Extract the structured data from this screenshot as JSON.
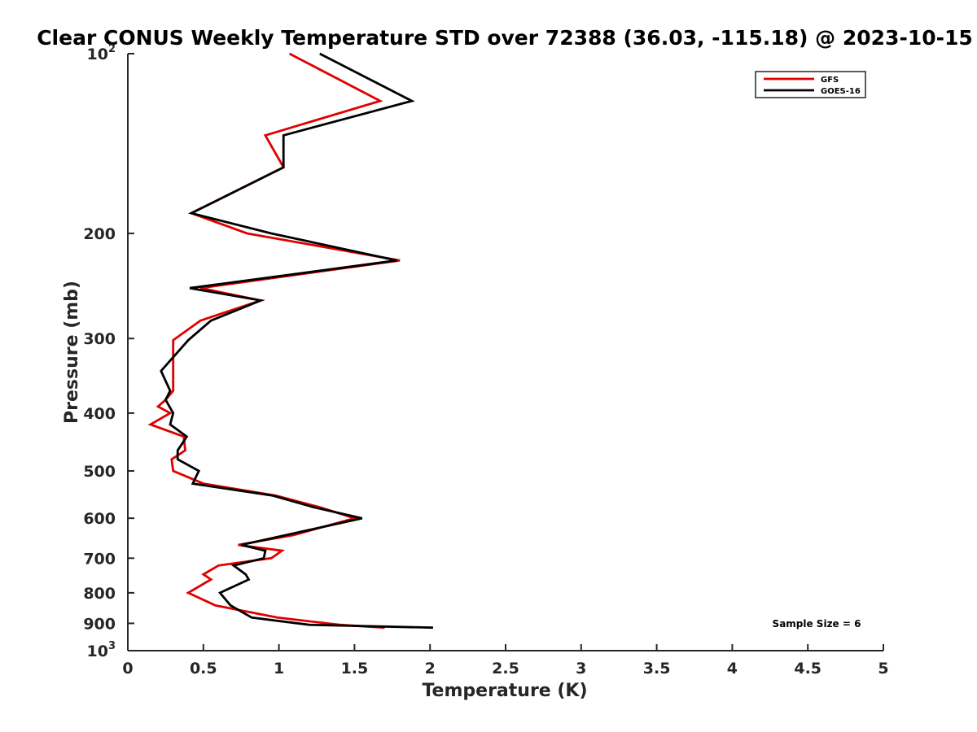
{
  "chart_data": {
    "type": "line",
    "title": "Clear CONUS Weekly Temperature STD over 72388 (36.03, -115.18) @ 2023-10-15",
    "xlabel": "Temperature (K)",
    "ylabel": "Pressure (mb)",
    "xlim": [
      0,
      5
    ],
    "ylim": [
      100,
      1000
    ],
    "y_scale": "log",
    "y_reversed": true,
    "grid": false,
    "x_ticks": [
      "0",
      "0.5",
      "1",
      "1.5",
      "2",
      "2.5",
      "3",
      "3.5",
      "4",
      "4.5",
      "5"
    ],
    "y_ticks": [
      {
        "value": 100,
        "base": "10",
        "exp": "2"
      },
      {
        "value": 200,
        "label": "200"
      },
      {
        "value": 300,
        "label": "300"
      },
      {
        "value": 400,
        "label": "400"
      },
      {
        "value": 500,
        "label": "500"
      },
      {
        "value": 600,
        "label": "600"
      },
      {
        "value": 700,
        "label": "700"
      },
      {
        "value": 800,
        "label": "800"
      },
      {
        "value": 900,
        "label": "900"
      },
      {
        "value": 1000,
        "base": "10",
        "exp": "3"
      }
    ],
    "legend": {
      "position": "top-right"
    },
    "annotation": "Sample Size = 6",
    "series": [
      {
        "name": "GFS",
        "color": "#e00000",
        "points": [
          [
            1.07,
            100
          ],
          [
            1.67,
            120
          ],
          [
            0.91,
            137
          ],
          [
            1.03,
            155
          ],
          [
            0.42,
            185
          ],
          [
            0.79,
            200
          ],
          [
            1.8,
            222
          ],
          [
            0.48,
            247
          ],
          [
            0.88,
            259
          ],
          [
            0.48,
            280
          ],
          [
            0.3,
            302
          ],
          [
            0.3,
            340
          ],
          [
            0.3,
            367
          ],
          [
            0.25,
            380
          ],
          [
            0.2,
            390
          ],
          [
            0.28,
            400
          ],
          [
            0.15,
            418
          ],
          [
            0.37,
            438
          ],
          [
            0.38,
            462
          ],
          [
            0.29,
            478
          ],
          [
            0.3,
            500
          ],
          [
            0.5,
            525
          ],
          [
            0.98,
            550
          ],
          [
            1.27,
            575
          ],
          [
            1.5,
            600
          ],
          [
            1.1,
            640
          ],
          [
            0.73,
            665
          ],
          [
            1.02,
            680
          ],
          [
            0.95,
            700
          ],
          [
            0.6,
            720
          ],
          [
            0.5,
            745
          ],
          [
            0.55,
            760
          ],
          [
            0.4,
            800
          ],
          [
            0.58,
            840
          ],
          [
            0.99,
            880
          ],
          [
            1.4,
            905
          ],
          [
            1.7,
            915
          ]
        ]
      },
      {
        "name": "GOES-16",
        "color": "#000000",
        "points": [
          [
            1.27,
            100
          ],
          [
            1.88,
            120
          ],
          [
            1.03,
            137
          ],
          [
            1.03,
            155
          ],
          [
            0.42,
            185
          ],
          [
            0.95,
            200
          ],
          [
            1.78,
            222
          ],
          [
            0.41,
            247
          ],
          [
            0.88,
            259
          ],
          [
            0.55,
            280
          ],
          [
            0.4,
            302
          ],
          [
            0.22,
            340
          ],
          [
            0.28,
            367
          ],
          [
            0.25,
            380
          ],
          [
            0.3,
            400
          ],
          [
            0.28,
            418
          ],
          [
            0.39,
            438
          ],
          [
            0.33,
            462
          ],
          [
            0.33,
            478
          ],
          [
            0.47,
            500
          ],
          [
            0.43,
            525
          ],
          [
            0.96,
            550
          ],
          [
            1.23,
            575
          ],
          [
            1.55,
            600
          ],
          [
            1.05,
            640
          ],
          [
            0.75,
            665
          ],
          [
            0.91,
            680
          ],
          [
            0.9,
            700
          ],
          [
            0.7,
            720
          ],
          [
            0.78,
            745
          ],
          [
            0.8,
            760
          ],
          [
            0.61,
            800
          ],
          [
            0.68,
            840
          ],
          [
            0.82,
            880
          ],
          [
            1.2,
            905
          ],
          [
            2.02,
            915
          ]
        ]
      }
    ]
  }
}
